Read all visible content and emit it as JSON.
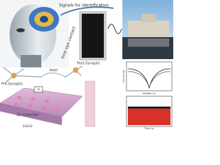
{
  "labels": {
    "signals": "Signals for identification",
    "eye_contact": "First eye contact",
    "pre_synaptic": "Pre-Synaptic",
    "axon": "Axon",
    "post_synaptic": "Post-Synaptic",
    "materials": "2D materials",
    "substrate": "Si/SiO2",
    "voltage_source": "V"
  },
  "iv_plot": {
    "xlabel": "Voltage (V)",
    "ylabel": "Current (A)"
  },
  "time_plot": {
    "xlabel": "Time (s)"
  }
}
